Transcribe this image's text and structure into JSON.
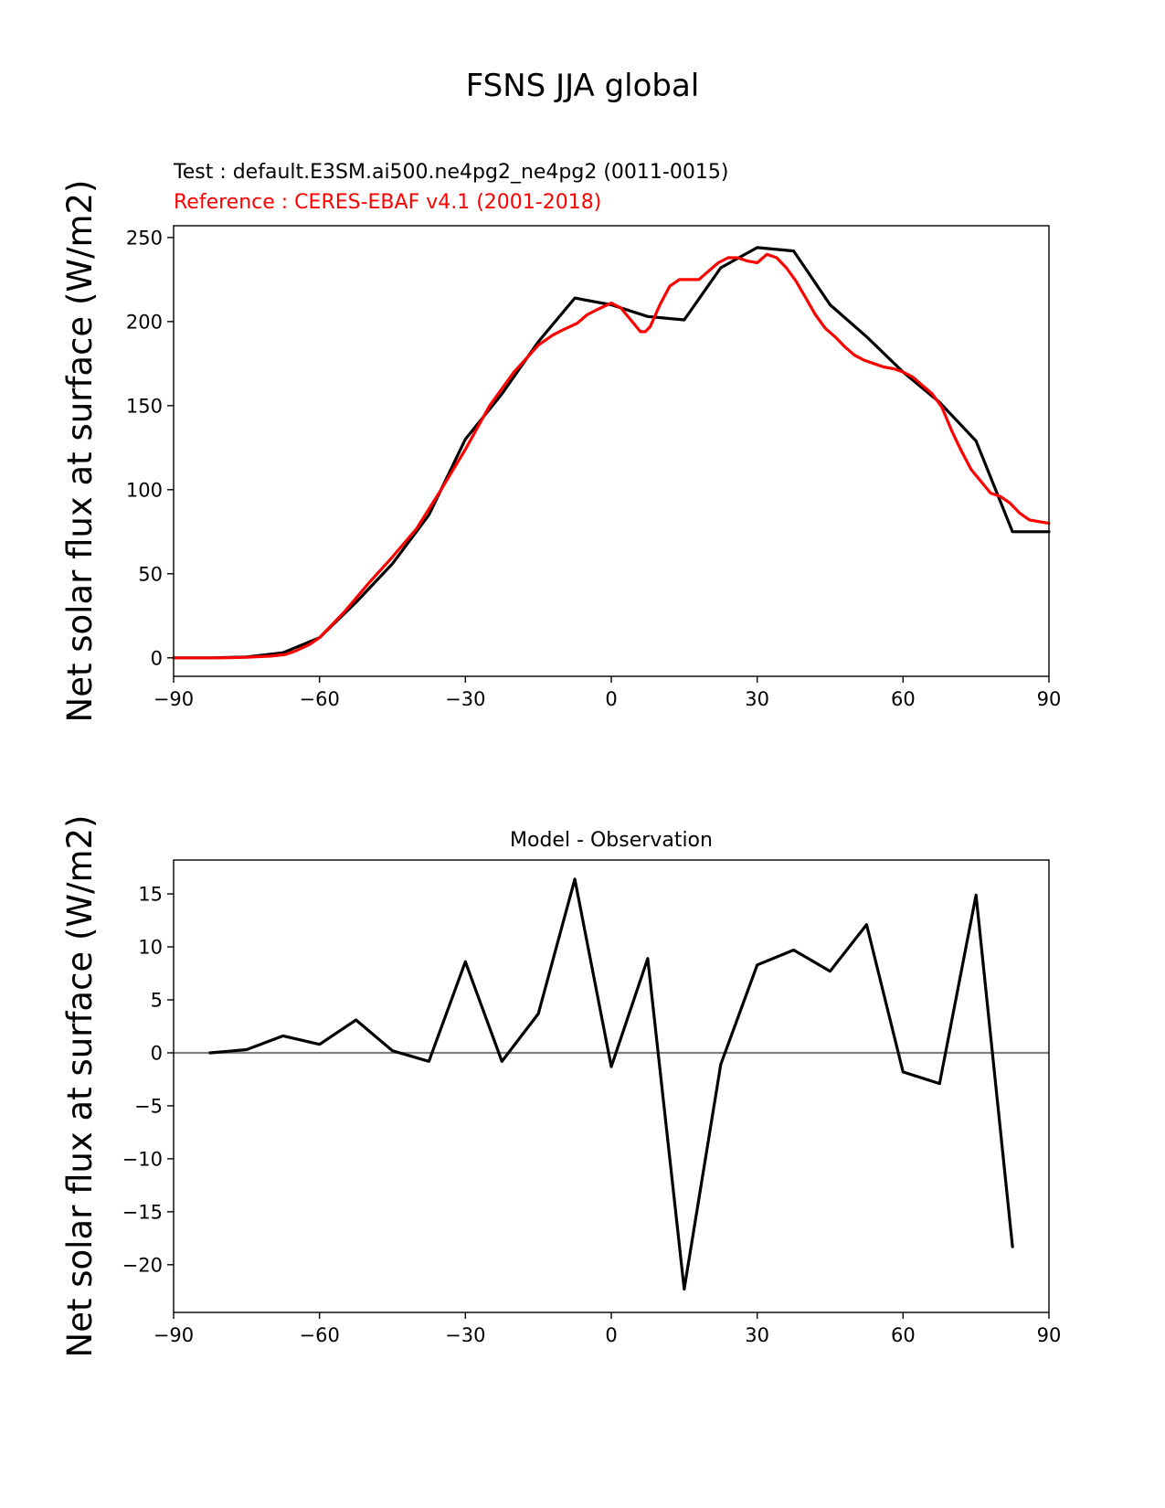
{
  "page": {
    "title": "FSNS JJA global"
  },
  "legend": {
    "test": "Test : default.E3SM.ai500.ne4pg2_ne4pg2 (0011-0015)",
    "reference": "Reference : CERES-EBAF v4.1 (2001-2018)"
  },
  "colors": {
    "test": "#000000",
    "reference": "#ff0000",
    "zero_line": "#808080"
  },
  "chart_data": [
    {
      "type": "line",
      "title": "",
      "xlabel": "",
      "ylabel": "Net solar flux at surface (W/m2)",
      "xlim": [
        -90,
        90
      ],
      "ylim": [
        -11,
        257
      ],
      "xticks": [
        -90,
        -60,
        -30,
        0,
        30,
        60,
        90
      ],
      "xtick_labels": [
        "−90",
        "−60",
        "−30",
        "0",
        "30",
        "60",
        "90"
      ],
      "yticks": [
        0,
        50,
        100,
        150,
        200,
        250
      ],
      "ytick_labels": [
        "0",
        "50",
        "100",
        "150",
        "200",
        "250"
      ],
      "grid": false,
      "series": [
        {
          "name": "Test : default.E3SM.ai500.ne4pg2_ne4pg2 (0011-0015)",
          "color": "#000000",
          "x": [
            -90,
            -82.5,
            -75,
            -67.5,
            -60,
            -52.5,
            -45,
            -37.5,
            -30,
            -22.5,
            -15,
            -7.5,
            0,
            7.5,
            15,
            22.5,
            30,
            37.5,
            45,
            52.5,
            60,
            67.5,
            75,
            82.5,
            90
          ],
          "y": [
            0,
            0,
            0.5,
            3,
            12,
            33,
            56,
            85,
            130,
            157,
            188,
            214,
            210,
            203,
            201,
            232,
            244,
            242,
            210,
            191,
            170,
            152,
            129,
            75,
            75
          ]
        },
        {
          "name": "Reference : CERES-EBAF v4.1 (2001-2018)",
          "color": "#ff0000",
          "x": [
            -90,
            -80,
            -75,
            -70,
            -67,
            -65,
            -62,
            -60,
            -55,
            -50,
            -45,
            -40,
            -35,
            -30,
            -25,
            -20,
            -15,
            -12,
            -10,
            -7,
            -5,
            -3,
            0,
            2,
            4,
            6,
            7,
            8,
            10,
            12,
            14,
            16,
            18,
            20,
            22,
            24,
            26,
            28,
            30,
            32,
            34,
            36,
            38,
            40,
            42,
            44,
            46,
            48,
            50,
            52,
            54,
            56,
            58,
            60,
            62,
            64,
            66,
            68,
            70,
            72,
            74,
            76,
            78,
            80,
            82,
            84,
            86,
            88,
            90
          ],
          "y": [
            0,
            0,
            0.3,
            1,
            2,
            4,
            8,
            12,
            27,
            44,
            60,
            77,
            100,
            124,
            150,
            170,
            186,
            192,
            195,
            199,
            204,
            207,
            211,
            208,
            201,
            194,
            194,
            197,
            210,
            221,
            225,
            225,
            225,
            230,
            235,
            238,
            238,
            236,
            235,
            240,
            238,
            232,
            224,
            214,
            204,
            196,
            191,
            185,
            180,
            177,
            175,
            173,
            172,
            170,
            167,
            162,
            157,
            149,
            135,
            123,
            112,
            105,
            98,
            96,
            92,
            86,
            82,
            81,
            80
          ]
        }
      ]
    },
    {
      "type": "line",
      "title": "Model - Observation",
      "xlabel": "",
      "ylabel": "Net solar flux at surface (W/m2)",
      "xlim": [
        -90,
        90
      ],
      "ylim": [
        -24.5,
        18.2
      ],
      "xticks": [
        -90,
        -60,
        -30,
        0,
        30,
        60,
        90
      ],
      "xtick_labels": [
        "−90",
        "−60",
        "−30",
        "0",
        "30",
        "60",
        "90"
      ],
      "yticks": [
        -20,
        -15,
        -10,
        -5,
        0,
        5,
        10,
        15
      ],
      "ytick_labels": [
        "−20",
        "−15",
        "−10",
        "−5",
        "0",
        "5",
        "10",
        "15"
      ],
      "grid": false,
      "zero_line": true,
      "series": [
        {
          "name": "",
          "color": "#000000",
          "x": [
            -82.5,
            -75,
            -67.5,
            -60,
            -52.5,
            -45,
            -37.5,
            -30,
            -22.5,
            -15,
            -7.5,
            0,
            7.5,
            15,
            22.5,
            30,
            37.5,
            45,
            52.5,
            60,
            67.5,
            75,
            82.5
          ],
          "y": [
            0,
            0.3,
            1.6,
            0.8,
            3.1,
            0.2,
            -0.8,
            8.6,
            -0.8,
            3.7,
            16.4,
            -1.3,
            8.9,
            -22.3,
            -1.1,
            8.3,
            9.7,
            7.7,
            12.1,
            -1.8,
            -2.9,
            14.9,
            -18.3
          ]
        }
      ]
    }
  ]
}
